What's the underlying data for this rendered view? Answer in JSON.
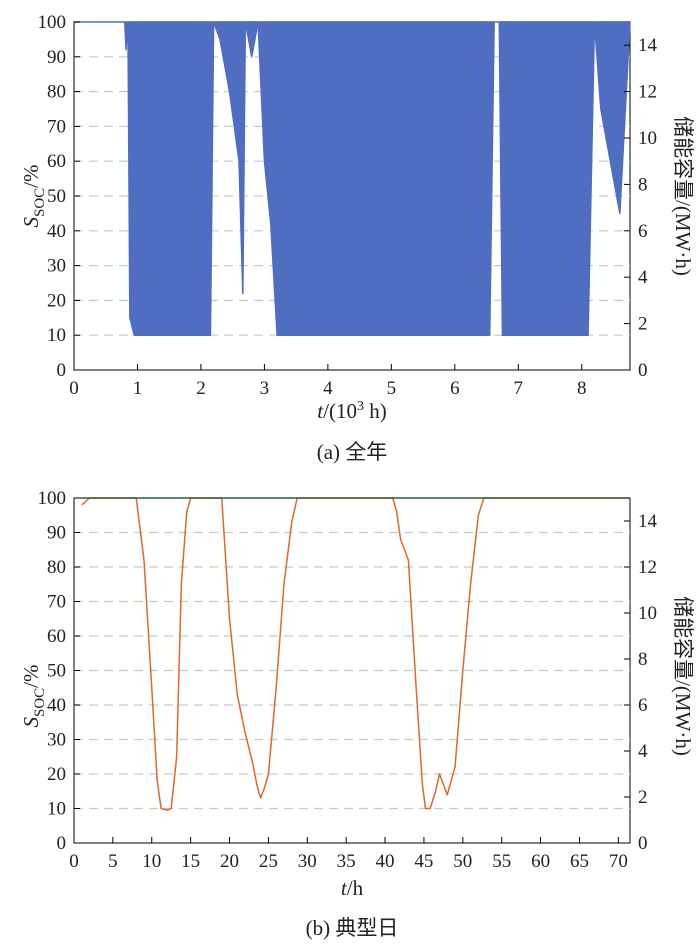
{
  "chart_data": [
    {
      "type": "line",
      "caption": "(a) 全年",
      "xlabel": {
        "var": "t",
        "rest": "/(10",
        "sup": "3",
        "tail": " h)"
      },
      "ylabel_left": {
        "var": "S",
        "sub": "SOC",
        "rest": "/%"
      },
      "ylabel_right": "储能容量/(MW·h)",
      "xlim": [
        0,
        8.76
      ],
      "xticks": [
        0,
        1,
        2,
        3,
        4,
        5,
        6,
        7,
        8
      ],
      "ylim": [
        0,
        100
      ],
      "yticks": [
        0,
        10,
        20,
        30,
        40,
        50,
        60,
        70,
        80,
        90,
        100
      ],
      "y2lim": [
        0,
        15
      ],
      "y2ticks": [
        0,
        2,
        4,
        6,
        8,
        10,
        12,
        14
      ],
      "grid": "horizontal dashed",
      "series": [
        {
          "color": "#4f6dc1",
          "style": "dense daily cycling",
          "x": [
            0,
            0.8,
            0.82,
            0.85,
            0.88,
            0.95,
            1.05,
            1.2,
            1.4,
            1.6,
            1.8,
            2.0,
            2.15,
            2.2,
            2.3,
            2.45,
            2.6,
            2.66,
            2.7,
            2.8,
            2.9,
            3.0,
            3.1,
            3.2,
            3.4,
            3.7,
            4.0,
            4.3,
            4.6,
            5.0,
            5.4,
            5.8,
            6.2,
            6.55,
            6.62,
            6.7,
            6.75,
            6.8,
            7.0,
            7.3,
            7.6,
            7.9,
            8.1,
            8.2,
            8.3,
            8.45,
            8.6,
            8.76
          ],
          "y": [
            100,
            100,
            92,
            100,
            15,
            10,
            10,
            10,
            10,
            10,
            10,
            10,
            10,
            100,
            95,
            80,
            60,
            22,
            100,
            90,
            100,
            60,
            42,
            10,
            10,
            10,
            10,
            10,
            10,
            10,
            10,
            10,
            10,
            10,
            100,
            100,
            10,
            10,
            10,
            10,
            10,
            10,
            10,
            100,
            75,
            60,
            45,
            100
          ]
        }
      ]
    },
    {
      "type": "line",
      "caption": "(b) 典型日",
      "xlabel": {
        "var": "t",
        "rest": "/h"
      },
      "ylabel_left": {
        "var": "S",
        "sub": "SOC",
        "rest": "/%"
      },
      "ylabel_right": "储能容量/(MW·h)",
      "xlim": [
        0,
        71.5
      ],
      "xticks": [
        0,
        5,
        10,
        15,
        20,
        25,
        30,
        35,
        40,
        45,
        50,
        55,
        60,
        65,
        70
      ],
      "ylim": [
        0,
        100
      ],
      "yticks": [
        0,
        10,
        20,
        30,
        40,
        50,
        60,
        70,
        80,
        90,
        100
      ],
      "y2lim": [
        0,
        15
      ],
      "y2ticks": [
        0,
        2,
        4,
        6,
        8,
        10,
        12,
        14
      ],
      "grid": "horizontal dashed",
      "series": [
        {
          "color": "#e0672a",
          "x": [
            1,
            2,
            8,
            9,
            10,
            10.7,
            11.2,
            12,
            12.5,
            13.2,
            13.8,
            14.5,
            15,
            19,
            20,
            21,
            22,
            23,
            23.5,
            24,
            24.5,
            25,
            26,
            27,
            28,
            28.7,
            41,
            41.5,
            42,
            43,
            44,
            44.8,
            45.2,
            45.8,
            46.5,
            47,
            47.5,
            48,
            49,
            50,
            51,
            52,
            52.7,
            71.5
          ],
          "y": [
            98,
            100,
            100,
            82,
            45,
            18,
            10,
            9.5,
            10,
            25,
            75,
            96,
            100,
            100,
            65,
            43,
            32,
            23,
            17,
            13,
            16,
            20,
            45,
            75,
            93,
            100,
            100,
            96,
            88,
            82,
            45,
            17,
            10,
            10,
            15,
            20,
            17,
            14,
            22,
            50,
            75,
            95,
            100,
            100
          ]
        },
        {
          "color": "#2f5e3a",
          "x": [
            1,
            71.5
          ],
          "y": [
            100,
            100
          ]
        }
      ]
    }
  ]
}
